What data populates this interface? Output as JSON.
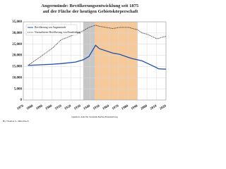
{
  "chart_data": {
    "type": "line",
    "title": "Angermünde: Bevölkerungsentwicklung seit 1875 auf der Fläche der heutigen Gebietskörperschaft",
    "x": [
      1875,
      1890,
      1900,
      1910,
      1925,
      1933,
      1939,
      1946,
      1950,
      1964,
      1971,
      1981,
      1985,
      1990,
      1995,
      2000,
      2005,
      2010,
      2012,
      2015,
      2020
    ],
    "series": [
      {
        "name": "Bevölkerung von Angermünde",
        "color": "#1f4fa8",
        "style": "solid",
        "values": [
          15500,
          15800,
          16000,
          16300,
          17000,
          18000,
          19500,
          24500,
          23000,
          21000,
          20500,
          19000,
          18500,
          18000,
          17500,
          16500,
          15500,
          14500,
          14000,
          13900,
          13800
        ]
      },
      {
        "name": "Normalisierte Bevölkerung von Brandenburg",
        "color": "#111111",
        "style": "dotted",
        "values": [
          15500,
          20000,
          23000,
          27000,
          29500,
          31000,
          32500,
          33500,
          33000,
          32000,
          32500,
          32500,
          32000,
          31500,
          30000,
          29500,
          28500,
          27500,
          27500,
          28000,
          28500
        ]
      }
    ],
    "shaded_periods": [
      {
        "from": 1933,
        "to": 1945,
        "color": "#bdbdbd"
      },
      {
        "from": 1945,
        "to": 1990,
        "color": "#f5c08a"
      }
    ],
    "xlim": [
      1870,
      2020
    ],
    "xticks": [
      1870,
      1880,
      1890,
      1900,
      1910,
      1920,
      1930,
      1940,
      1950,
      1960,
      1970,
      1980,
      1990,
      2000,
      2010,
      2020
    ],
    "ylim": [
      0,
      35000
    ],
    "yticks": [
      0,
      {
        "value": 5000,
        "label": "5,000"
      },
      {
        "value": 10000,
        "label": "10,000"
      },
      {
        "value": 15000,
        "label": "15,000"
      },
      {
        "value": 20000,
        "label": "20,000"
      },
      {
        "value": 25000,
        "label": "25,000"
      },
      {
        "value": 30000,
        "label": "30,000"
      },
      {
        "value": 35000,
        "label": "35,000"
      }
    ],
    "grid": true,
    "legend_position": "upper left",
    "author": "By Thomas G. Mittelbach",
    "source": "Quellen: Amt für Statistik Berlin-Brandenburg"
  }
}
